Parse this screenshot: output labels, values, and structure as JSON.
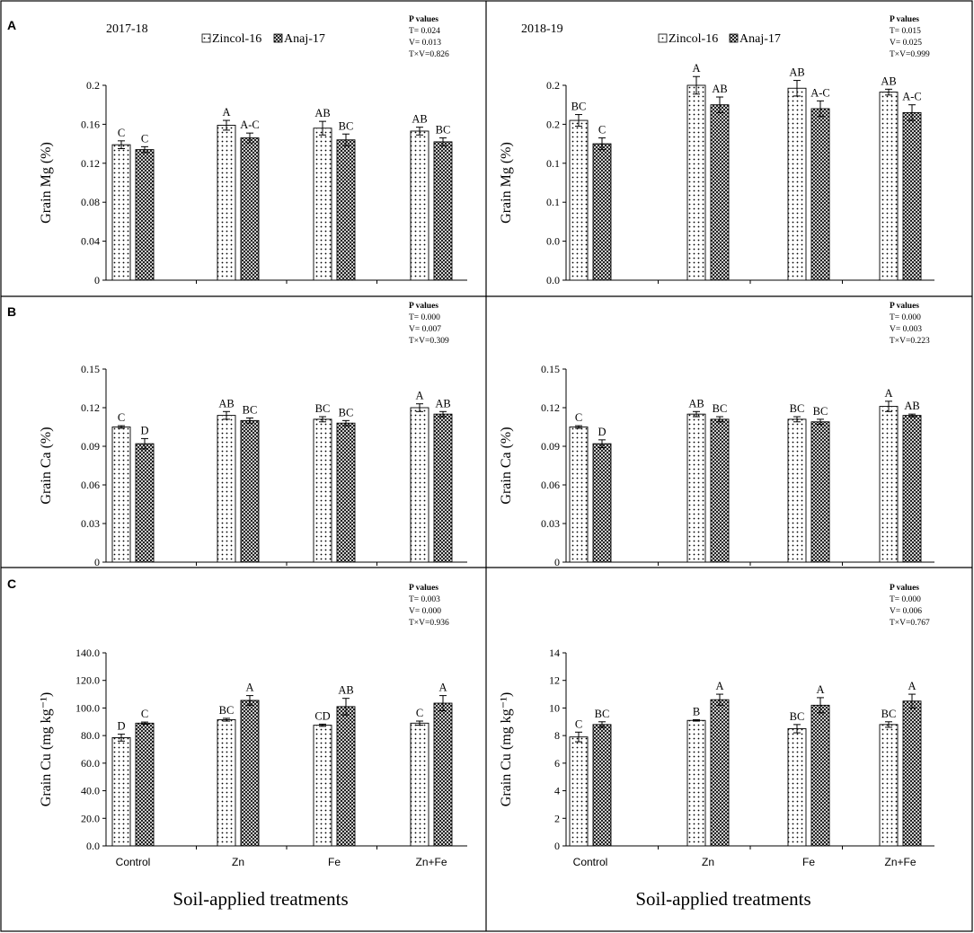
{
  "figure": {
    "legend": [
      "Zincol-16",
      "Anaj-17"
    ],
    "xtitle": "Soil-applied treatments",
    "pvalues_title": "P values"
  },
  "chart_data": [
    {
      "type": "bar",
      "panel": "A",
      "year": "2017-18",
      "categories": [
        "Control",
        "Zn",
        "Fe",
        "Zn+Fe"
      ],
      "ylabel": "Grain Mg (%)",
      "ylim": [
        0,
        0.2
      ],
      "yticks": [
        "0",
        "0.04",
        "0.08",
        "0.12",
        "0.16",
        "0.2"
      ],
      "series": [
        {
          "name": "Zincol-16",
          "values": [
            0.139,
            0.159,
            0.156,
            0.153
          ],
          "errors": [
            0.004,
            0.005,
            0.007,
            0.004
          ],
          "letters": [
            "C",
            "A",
            "AB",
            "AB"
          ]
        },
        {
          "name": "Anaj-17",
          "values": [
            0.134,
            0.146,
            0.144,
            0.142
          ],
          "errors": [
            0.003,
            0.005,
            0.006,
            0.004
          ],
          "letters": [
            "C",
            "A-C",
            "BC",
            "BC"
          ]
        }
      ],
      "pvalues": [
        "T= 0.024",
        "V= 0.013",
        "T×V=0.826"
      ]
    },
    {
      "type": "bar",
      "panel": "A",
      "year": "2018-19",
      "categories": [
        "Control",
        "Zn",
        "Fe",
        "Zn+Fe"
      ],
      "ylabel": "Grain Mg (%)",
      "ylim": [
        0,
        0.2
      ],
      "yticks": [
        "0.0",
        "0.0",
        "0.1",
        "0.1",
        "0.2",
        "0.2"
      ],
      "series": [
        {
          "name": "Zincol-16",
          "values": [
            0.164,
            0.2,
            0.197,
            0.193
          ],
          "errors": [
            0.006,
            0.009,
            0.008,
            0.003
          ],
          "letters": [
            "BC",
            "A",
            "AB",
            "AB"
          ]
        },
        {
          "name": "Anaj-17",
          "values": [
            0.14,
            0.18,
            0.176,
            0.172
          ],
          "errors": [
            0.006,
            0.008,
            0.008,
            0.008
          ],
          "letters": [
            "C",
            "AB",
            "A-C",
            "A-C"
          ]
        }
      ],
      "pvalues": [
        "T= 0.015",
        "V= 0.025",
        "T×V=0.999"
      ]
    },
    {
      "type": "bar",
      "panel": "B",
      "year": "",
      "categories": [
        "Control",
        "Zn",
        "Fe",
        "Zn+Fe"
      ],
      "ylabel": "Grain Ca (%)",
      "ylim": [
        0,
        0.15
      ],
      "yticks": [
        "0",
        "0.03",
        "0.06",
        "0.09",
        "0.12",
        "0.15"
      ],
      "series": [
        {
          "name": "Zincol-16",
          "values": [
            0.105,
            0.114,
            0.111,
            0.12
          ],
          "errors": [
            0.001,
            0.003,
            0.002,
            0.003
          ],
          "letters": [
            "C",
            "AB",
            "BC",
            "A"
          ]
        },
        {
          "name": "Anaj-17",
          "values": [
            0.092,
            0.11,
            0.108,
            0.115
          ],
          "errors": [
            0.004,
            0.002,
            0.002,
            0.002
          ],
          "letters": [
            "D",
            "BC",
            "BC",
            "AB"
          ]
        }
      ],
      "pvalues": [
        "T= 0.000",
        "V= 0.007",
        "T×V=0.309"
      ]
    },
    {
      "type": "bar",
      "panel": "B",
      "year": "",
      "categories": [
        "Control",
        "Zn",
        "Fe",
        "Zn+Fe"
      ],
      "ylabel": "Grain Ca (%)",
      "ylim": [
        0,
        0.15
      ],
      "yticks": [
        "0",
        "0.03",
        "0.06",
        "0.09",
        "0.12",
        "0.15"
      ],
      "series": [
        {
          "name": "Zincol-16",
          "values": [
            0.105,
            0.115,
            0.111,
            0.121
          ],
          "errors": [
            0.001,
            0.002,
            0.002,
            0.004
          ],
          "letters": [
            "C",
            "AB",
            "BC",
            "A"
          ]
        },
        {
          "name": "Anaj-17",
          "values": [
            0.092,
            0.111,
            0.109,
            0.114
          ],
          "errors": [
            0.003,
            0.002,
            0.002,
            0.001
          ],
          "letters": [
            "D",
            "BC",
            "BC",
            "AB"
          ]
        }
      ],
      "pvalues": [
        "T= 0.000",
        "V= 0.003",
        "T×V=0.223"
      ]
    },
    {
      "type": "bar",
      "panel": "C",
      "year": "",
      "categories": [
        "Control",
        "Zn",
        "Fe",
        "Zn+Fe"
      ],
      "ylabel": "Grain Cu (mg kg⁻¹)",
      "ylim": [
        0,
        140
      ],
      "yticks": [
        "0.0",
        "20.0",
        "40.0",
        "60.0",
        "80.0",
        "100.0",
        "120.0",
        "140.0"
      ],
      "series": [
        {
          "name": "Zincol-16",
          "values": [
            78.5,
            91.5,
            87.5,
            89.0
          ],
          "errors": [
            2.5,
            1.0,
            0.8,
            1.5
          ],
          "letters": [
            "D",
            "BC",
            "CD",
            "C"
          ]
        },
        {
          "name": "Anaj-17",
          "values": [
            89.0,
            105.5,
            101.0,
            103.5
          ],
          "errors": [
            0.8,
            3.5,
            6.0,
            5.5
          ],
          "letters": [
            "C",
            "A",
            "AB",
            "A"
          ]
        }
      ],
      "pvalues": [
        "T= 0.003",
        "V= 0.000",
        "T×V=0.936"
      ]
    },
    {
      "type": "bar",
      "panel": "C",
      "year": "",
      "categories": [
        "Control",
        "Zn",
        "Fe",
        "Zn+Fe"
      ],
      "ylabel": "Grain Cu (mg kg⁻¹)",
      "ylim": [
        0,
        14
      ],
      "yticks": [
        "0",
        "2",
        "4",
        "6",
        "8",
        "10",
        "12",
        "14"
      ],
      "series": [
        {
          "name": "Zincol-16",
          "values": [
            7.9,
            9.1,
            8.5,
            8.8
          ],
          "errors": [
            0.35,
            0.05,
            0.3,
            0.2
          ],
          "letters": [
            "C",
            "B",
            "BC",
            "BC"
          ]
        },
        {
          "name": "Anaj-17",
          "values": [
            8.8,
            10.6,
            10.2,
            10.5
          ],
          "errors": [
            0.2,
            0.4,
            0.55,
            0.5
          ],
          "letters": [
            "BC",
            "A",
            "A",
            "A"
          ]
        }
      ],
      "pvalues": [
        "T= 0.000",
        "V= 0.006",
        "T×V=0.767"
      ]
    }
  ]
}
